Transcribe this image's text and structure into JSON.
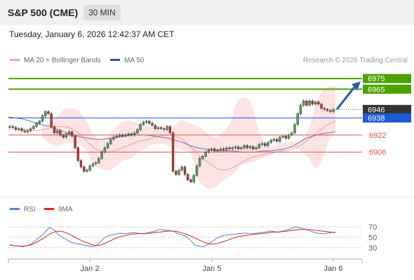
{
  "header": {
    "title": "S&P 500 (CME)",
    "timeframe": "30 MIN"
  },
  "datetime": "Tuesday, January 6, 2026 12:42:37 AM CET",
  "credit": "Research © 2026 Trading Central",
  "legend_top": [
    {
      "label": "MA 20 + Bollinger Bands",
      "color": "#f4a3a3"
    },
    {
      "label": "MA 50",
      "color": "#2f5597"
    }
  ],
  "legend_bottom": [
    {
      "label": "RSI",
      "color": "#5b7fd9"
    },
    {
      "label": "9MA",
      "color": "#e02020"
    }
  ],
  "colors": {
    "resistance": "#4aa300",
    "support": "#e05050",
    "pivot": "#1f5bd6",
    "last_price": "#333333",
    "bollinger_fill": "#fde3e3",
    "ma50": "#6677bb",
    "ma20": "#e9a0a0",
    "arrow": "#2a5a9e"
  },
  "chart_data": [
    {
      "type": "candlestick",
      "ylim": [
        6870,
        6985
      ],
      "x_ticks": [
        "Jan 2",
        "Jan 5",
        "Jan 6"
      ],
      "levels": [
        {
          "value": 6975,
          "label": "6975",
          "kind": "resistance"
        },
        {
          "value": 6965,
          "label": "6965",
          "kind": "resistance"
        },
        {
          "value": 6946,
          "label": "6946",
          "kind": "last_price"
        },
        {
          "value": 6938,
          "label": "6938",
          "kind": "pivot"
        },
        {
          "value": 6922,
          "label": "6922",
          "kind": "support"
        },
        {
          "value": 6906,
          "label": "6906",
          "kind": "support"
        }
      ],
      "close": [
        6930,
        6929,
        6927,
        6928,
        6926,
        6925,
        6926,
        6928,
        6930,
        6933,
        6935,
        6940,
        6944,
        6942,
        6930,
        6924,
        6926,
        6922,
        6920,
        6923,
        6925,
        6921,
        6910,
        6898,
        6892,
        6888,
        6889,
        6893,
        6895,
        6896,
        6900,
        6906,
        6910,
        6914,
        6918,
        6920,
        6921,
        6922,
        6921,
        6922,
        6923,
        6922,
        6924,
        6927,
        6932,
        6934,
        6935,
        6933,
        6931,
        6928,
        6929,
        6928,
        6927,
        6930,
        6924,
        6888,
        6885,
        6889,
        6892,
        6885,
        6880,
        6878,
        6884,
        6893,
        6900,
        6902,
        6906,
        6908,
        6909,
        6907,
        6908,
        6909,
        6908,
        6910,
        6909,
        6910,
        6911,
        6909,
        6910,
        6912,
        6910,
        6911,
        6909,
        6910,
        6913,
        6914,
        6912,
        6915,
        6917,
        6918,
        6916,
        6920,
        6921,
        6919,
        6922,
        6924,
        6932,
        6942,
        6950,
        6954,
        6950,
        6954,
        6951,
        6953,
        6951,
        6947,
        6946,
        6945,
        6944,
        6946
      ],
      "bb_upper": [
        6932,
        6932,
        6934,
        6937,
        6940,
        6943,
        6946,
        6947,
        6947,
        6946,
        6944,
        6940,
        6935,
        6928,
        6922,
        6919,
        6918,
        6919,
        6922,
        6926,
        6930,
        6933,
        6935,
        6936,
        6935,
        6934,
        6933,
        6932,
        6931,
        6930,
        6929,
        6928,
        6927,
        6926,
        6926,
        6929,
        6932,
        6935,
        6936,
        6935,
        6933,
        6931,
        6930,
        6928,
        6925,
        6922,
        6920,
        6920,
        6922,
        6926,
        6930,
        6936,
        6950,
        6955,
        6957,
        6957,
        6955,
        6945,
        6930,
        6920,
        6915,
        6911,
        6911,
        6913,
        6914,
        6915,
        6916,
        6916,
        6915,
        6916,
        6918,
        6921,
        6930,
        6942,
        6955,
        6962,
        6965,
        6967,
        6968,
        6968
      ],
      "bb_lower": [
        6920,
        6917,
        6914,
        6912,
        6911,
        6912,
        6914,
        6915,
        6915,
        6914,
        6913,
        6911,
        6908,
        6900,
        6893,
        6891,
        6890,
        6889,
        6889,
        6890,
        6893,
        6896,
        6898,
        6899,
        6900,
        6903,
        6906,
        6908,
        6910,
        6912,
        6913,
        6914,
        6914,
        6913,
        6912,
        6911,
        6910,
        6909,
        6908,
        6907,
        6905,
        6895,
        6880,
        6875,
        6873,
        6871,
        6872,
        6874,
        6877,
        6880,
        6882,
        6884,
        6887,
        6892,
        6894,
        6895,
        6896,
        6897,
        6898,
        6900,
        6901,
        6903,
        6904,
        6906,
        6907,
        6908,
        6910,
        6910,
        6910,
        6909,
        6906,
        6903,
        6900,
        6893,
        6890,
        6895,
        6905,
        6915,
        6920,
        6925
      ],
      "ma20": [
        6928,
        6927,
        6926,
        6926,
        6927,
        6928,
        6929,
        6930,
        6930,
        6929,
        6927,
        6923,
        6918,
        6913,
        6909,
        6907,
        6906,
        6906,
        6908,
        6910,
        6912,
        6914,
        6916,
        6917,
        6918,
        6920,
        6921,
        6922,
        6922,
        6921,
        6919,
        6915,
        6910,
        6905,
        6900,
        6897,
        6893,
        6890,
        6889,
        6890,
        6892,
        6895,
        6898,
        6900,
        6902,
        6903,
        6904,
        6905,
        6906,
        6907,
        6908,
        6909,
        6911,
        6914,
        6918,
        6922,
        6926,
        6930,
        6933,
        6935
      ],
      "ma50": [
        6939,
        6938,
        6937,
        6935,
        6933,
        6931,
        6929,
        6927,
        6924,
        6922,
        6920,
        6919,
        6918,
        6918,
        6919,
        6920,
        6921,
        6922,
        6922,
        6922,
        6921,
        6920,
        6919,
        6917,
        6915,
        6912,
        6910,
        6909,
        6908,
        6907,
        6907,
        6907,
        6906,
        6906,
        6906,
        6907,
        6907,
        6908,
        6909,
        6911,
        6915,
        6919,
        6921,
        6923,
        6924,
        6925
      ]
    },
    {
      "type": "line",
      "ylim": [
        15,
        85
      ],
      "y_ticks": [
        "70",
        "50",
        "30"
      ],
      "series": [
        {
          "name": "RSI",
          "values": [
            36,
            34,
            33,
            32,
            34,
            38,
            45,
            52,
            60,
            69,
            65,
            55,
            50,
            45,
            40,
            38,
            37,
            35,
            33,
            32,
            36,
            45,
            52,
            54,
            56,
            58,
            57,
            58,
            59,
            58,
            57,
            58,
            60,
            62,
            65,
            64,
            63,
            62,
            58,
            55,
            52,
            45,
            35,
            33,
            32,
            36,
            42,
            48,
            52,
            54,
            55,
            56,
            57,
            58,
            58,
            57,
            58,
            59,
            60,
            62,
            61,
            60,
            62,
            64,
            67,
            70,
            68,
            66,
            63,
            60,
            58,
            57,
            58,
            59,
            60
          ]
        },
        {
          "name": "9MA",
          "values": [
            35,
            34,
            33,
            33,
            34,
            36,
            40,
            45,
            50,
            56,
            60,
            62,
            61,
            58,
            54,
            49,
            45,
            41,
            38,
            35,
            34,
            36,
            40,
            44,
            48,
            51,
            53,
            55,
            56,
            57,
            57,
            57,
            58,
            59,
            60,
            61,
            62,
            62,
            61,
            59,
            56,
            53,
            49,
            45,
            41,
            38,
            37,
            38,
            40,
            43,
            46,
            49,
            51,
            53,
            54,
            55,
            56,
            57,
            58,
            59,
            60,
            60,
            61,
            62,
            63,
            64,
            65,
            65,
            65,
            64,
            63,
            62,
            61,
            60,
            59
          ]
        }
      ]
    }
  ]
}
